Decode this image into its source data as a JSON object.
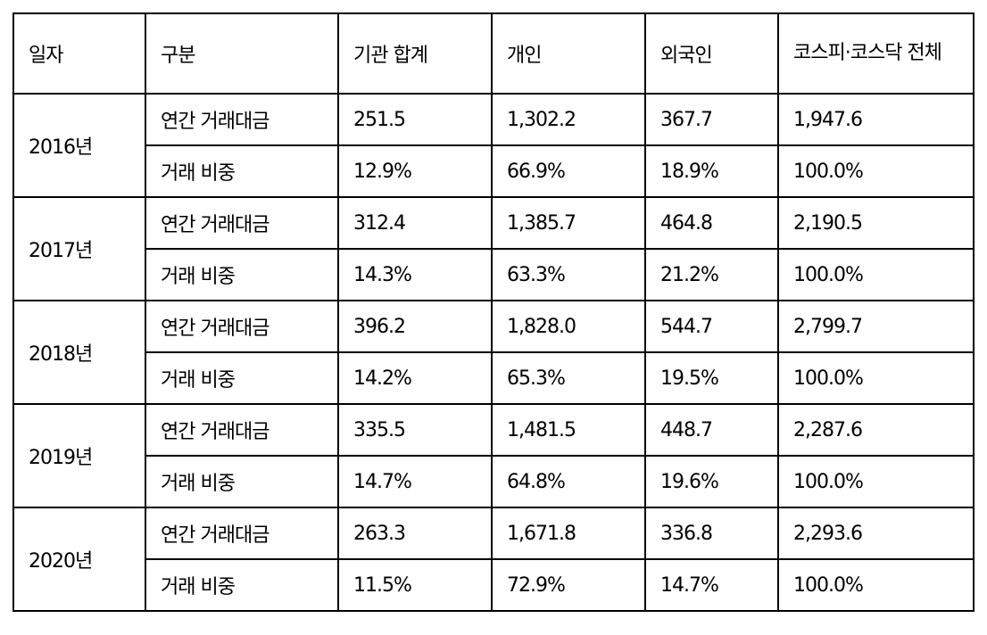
{
  "table": {
    "headers": [
      "일자",
      "구분",
      "기관 합계",
      "개인",
      "외국인",
      "코스피·코스닥 전체"
    ],
    "groups": [
      {
        "date": "2016년",
        "rows": [
          {
            "category": "연간 거래대금",
            "institution": "251.5",
            "individual": "1,302.2",
            "foreign": "367.7",
            "total": "1,947.6"
          },
          {
            "category": "거래 비중",
            "institution": "12.9%",
            "individual": "66.9%",
            "foreign": "18.9%",
            "total": "100.0%"
          }
        ]
      },
      {
        "date": "2017년",
        "rows": [
          {
            "category": "연간 거래대금",
            "institution": "312.4",
            "individual": "1,385.7",
            "foreign": "464.8",
            "total": "2,190.5"
          },
          {
            "category": "거래 비중",
            "institution": "14.3%",
            "individual": "63.3%",
            "foreign": "21.2%",
            "total": "100.0%"
          }
        ]
      },
      {
        "date": "2018년",
        "rows": [
          {
            "category": "연간 거래대금",
            "institution": "396.2",
            "individual": "1,828.0",
            "foreign": "544.7",
            "total": "2,799.7"
          },
          {
            "category": "거래 비중",
            "institution": "14.2%",
            "individual": "65.3%",
            "foreign": "19.5%",
            "total": "100.0%"
          }
        ]
      },
      {
        "date": "2019년",
        "rows": [
          {
            "category": "연간 거래대금",
            "institution": "335.5",
            "individual": "1,481.5",
            "foreign": "448.7",
            "total": "2,287.6"
          },
          {
            "category": "거래 비중",
            "institution": "14.7%",
            "individual": "64.8%",
            "foreign": "19.6%",
            "total": "100.0%"
          }
        ]
      },
      {
        "date": "2020년",
        "rows": [
          {
            "category": "연간 거래대금",
            "institution": "263.3",
            "individual": "1,671.8",
            "foreign": "336.8",
            "total": "2,293.6"
          },
          {
            "category": "거래 비중",
            "institution": "11.5%",
            "individual": "72.9%",
            "foreign": "14.7%",
            "total": "100.0%"
          }
        ]
      }
    ]
  }
}
